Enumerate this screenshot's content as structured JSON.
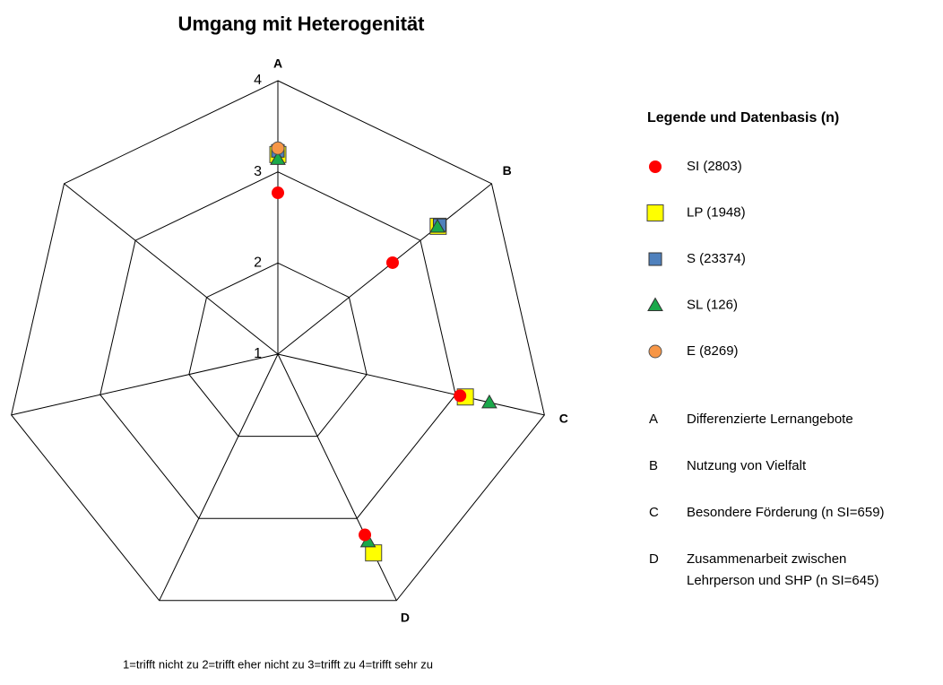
{
  "chart_data": {
    "type": "radar",
    "title": "Umgang mit Heterogenität",
    "categories": [
      "A",
      "B",
      "C",
      "D",
      null,
      null,
      null
    ],
    "rlim": [
      1,
      4
    ],
    "rticks": [
      1,
      2,
      3,
      4
    ],
    "grid": true,
    "legend_title": "Legende und Datenbasis (n)",
    "series": [
      {
        "name": "LP  (1948)",
        "color": "#ffff00",
        "marker": "square",
        "values": [
          3.19,
          3.25,
          3.11,
          3.42,
          null,
          null,
          null
        ]
      },
      {
        "name": "S   (23374)",
        "color": "#4f81bd",
        "marker": "square-small",
        "values": [
          3.23,
          3.27,
          null,
          null,
          null,
          null,
          null
        ]
      },
      {
        "name": "SL  (126)",
        "color": "#1aa84a",
        "marker": "triangle",
        "values": [
          3.14,
          3.24,
          3.38,
          3.28,
          null,
          null,
          null
        ]
      },
      {
        "name": "E  (8269)",
        "color": "#f79646",
        "marker": "circle",
        "values": [
          3.26,
          null,
          null,
          null,
          null,
          null,
          null
        ]
      },
      {
        "name": "SI  (2803)",
        "color": "#ff0000",
        "marker": "circle",
        "values": [
          2.77,
          2.61,
          3.05,
          3.2,
          null,
          null,
          null
        ]
      }
    ],
    "legend_order": [
      4,
      0,
      1,
      2,
      3
    ],
    "category_descriptions": [
      {
        "letter": "A",
        "lines": [
          "Differenzierte Lernangebote"
        ]
      },
      {
        "letter": "B",
        "lines": [
          "Nutzung von Vielfalt"
        ]
      },
      {
        "letter": "C",
        "lines": [
          "Besondere Förderung (n SI=659)"
        ]
      },
      {
        "letter": "D",
        "lines": [
          "Zusammenarbeit zwischen",
          "Lehrperson und SHP (n SI=645)"
        ]
      }
    ],
    "footnote": "1=trifft nicht zu   2=trifft eher nicht zu   3=trifft zu   4=trifft sehr zu"
  }
}
